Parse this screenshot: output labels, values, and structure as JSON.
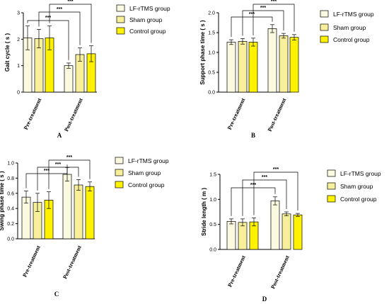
{
  "colors": {
    "LF-rTMS group": "#fbf9df",
    "Sham group": "#f7ef9a",
    "Control group": "#fff200",
    "axis": "#000000"
  },
  "chart_data": [
    {
      "panel": "A",
      "type": "bar",
      "ylabel": "Gait cycle ( s )",
      "ylim": [
        0,
        3.0
      ],
      "yticks": [
        "0",
        "1",
        "2",
        "3"
      ],
      "categories": [
        "Pre-treatment",
        "Post-treatment"
      ],
      "series": [
        {
          "name": "LF-rTMS group",
          "values": [
            2.05,
            1.0
          ],
          "errors": [
            0.45,
            0.1
          ]
        },
        {
          "name": "Sham group",
          "values": [
            2.02,
            1.42
          ],
          "errors": [
            0.35,
            0.25
          ]
        },
        {
          "name": "Control group",
          "values": [
            2.05,
            1.45
          ],
          "errors": [
            0.45,
            0.3
          ]
        }
      ],
      "significance": [
        "***",
        "***",
        "***"
      ],
      "legend": "right"
    },
    {
      "panel": "B",
      "type": "bar",
      "ylabel": "Support phase time ( s )",
      "ylim": [
        0,
        2.0
      ],
      "yticks": [
        "0.0",
        "0.5",
        "1.0",
        "1.5",
        "2.0"
      ],
      "categories": [
        "Pre-treatment",
        "Post-treatment"
      ],
      "series": [
        {
          "name": "LF-rTMS group",
          "values": [
            1.26,
            1.6
          ],
          "errors": [
            0.06,
            0.1
          ]
        },
        {
          "name": "Sham group",
          "values": [
            1.28,
            1.42
          ],
          "errors": [
            0.07,
            0.06
          ]
        },
        {
          "name": "Control group",
          "values": [
            1.26,
            1.38
          ],
          "errors": [
            0.1,
            0.07
          ]
        }
      ],
      "significance": [
        "***",
        "***",
        "***"
      ],
      "legend": "right"
    },
    {
      "panel": "C",
      "type": "bar",
      "ylabel": "Swing phase time ( s )",
      "ylim": [
        0,
        1.0
      ],
      "yticks": [
        "0.0",
        "0.2",
        "0.4",
        "0.6",
        "0.8",
        "1.0"
      ],
      "categories": [
        "Pre-treatment",
        "Post-treatment"
      ],
      "series": [
        {
          "name": "LF-rTMS group",
          "values": [
            0.55,
            0.85
          ],
          "errors": [
            0.08,
            0.09
          ]
        },
        {
          "name": "Sham group",
          "values": [
            0.48,
            0.71
          ],
          "errors": [
            0.12,
            0.07
          ]
        },
        {
          "name": "Control group",
          "values": [
            0.51,
            0.69
          ],
          "errors": [
            0.11,
            0.06
          ]
        }
      ],
      "significance": [
        "***",
        "***",
        "***"
      ],
      "legend": "right"
    },
    {
      "panel": "D",
      "type": "bar",
      "ylabel": "Stride length ( m )",
      "ylim": [
        0,
        1.5
      ],
      "yticks": [
        "0.0",
        "0.5",
        "1.0",
        "1.5"
      ],
      "categories": [
        "Pre-treatment",
        "Post-treatment"
      ],
      "series": [
        {
          "name": "LF-rTMS group",
          "values": [
            0.56,
            0.97
          ],
          "errors": [
            0.05,
            0.08
          ]
        },
        {
          "name": "Sham group",
          "values": [
            0.54,
            0.71
          ],
          "errors": [
            0.07,
            0.04
          ]
        },
        {
          "name": "Control group",
          "values": [
            0.55,
            0.69
          ],
          "errors": [
            0.08,
            0.03
          ]
        }
      ],
      "significance": [
        "***",
        "***",
        "***"
      ],
      "legend": "right"
    }
  ]
}
